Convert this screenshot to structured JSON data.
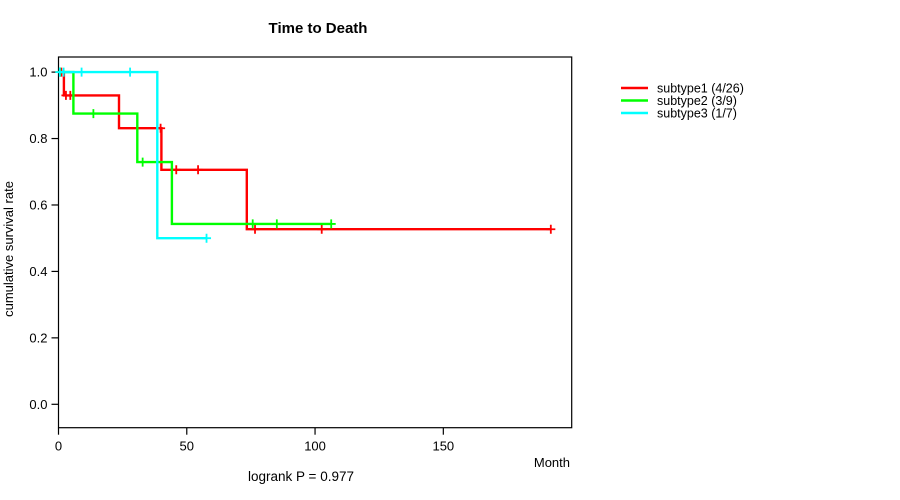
{
  "header": {
    "title": "Time to Death"
  },
  "axes": {
    "x_label": "Month",
    "y_label": "cumulative survival rate"
  },
  "footer": {
    "logrank_text": "logrank P = 0.977"
  },
  "chart_data": {
    "type": "line",
    "subtype": "kaplan-meier-step",
    "title": "Time to Death",
    "xlabel": "Month",
    "ylabel": "cumulative survival rate",
    "annotation": "logrank P = 0.977",
    "grid": false,
    "legend_position": "right-outside",
    "xticks": [
      0,
      50,
      100,
      150
    ],
    "yticks": [
      0.0,
      0.2,
      0.4,
      0.6,
      0.8,
      1.0
    ],
    "xlim": [
      0,
      200
    ],
    "ylim": [
      0,
      1
    ],
    "series": [
      {
        "name": "subtype1 (4/26)",
        "color": "#ff0000",
        "points": [
          [
            0,
            1.0
          ],
          [
            2.1,
            0.93
          ],
          [
            23.6,
            0.831
          ],
          [
            40.1,
            0.706
          ],
          [
            73.4,
            0.527
          ]
        ],
        "end_x": 192,
        "censor_marks": [
          [
            1.1,
            1.0
          ],
          [
            2.9,
            0.93
          ],
          [
            4.6,
            0.93
          ],
          [
            39.8,
            0.831
          ],
          [
            45.9,
            0.706
          ],
          [
            54.4,
            0.706
          ],
          [
            76.6,
            0.527
          ],
          [
            102.6,
            0.527
          ],
          [
            191.9,
            0.527
          ]
        ]
      },
      {
        "name": "subtype2 (3/9)",
        "color": "#00ff00",
        "points": [
          [
            0,
            1.0
          ],
          [
            5.8,
            0.875
          ],
          [
            30.7,
            0.729
          ],
          [
            44.2,
            0.543
          ]
        ],
        "end_x": 106.5,
        "censor_marks": [
          [
            0.6,
            1.0
          ],
          [
            13.6,
            0.875
          ],
          [
            32.8,
            0.729
          ],
          [
            75.7,
            0.543
          ],
          [
            85.1,
            0.543
          ],
          [
            106.3,
            0.543
          ]
        ]
      },
      {
        "name": "subtype3 (1/7)",
        "color": "#00ffff",
        "points": [
          [
            0,
            1.0
          ],
          [
            38.5,
            0.5
          ]
        ],
        "end_x": 57.8,
        "censor_marks": [
          [
            0.5,
            1.0
          ],
          [
            2.0,
            1.0
          ],
          [
            9.0,
            1.0
          ],
          [
            27.9,
            1.0
          ],
          [
            57.7,
            0.5
          ]
        ]
      }
    ]
  }
}
